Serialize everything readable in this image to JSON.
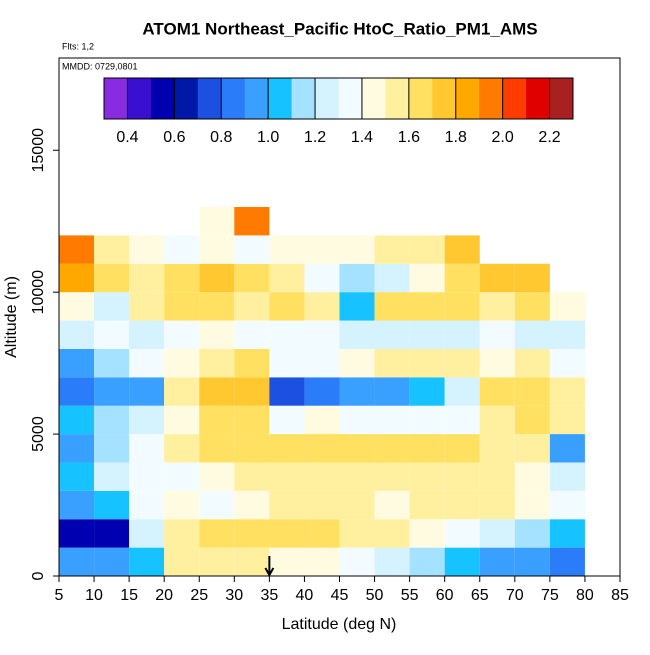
{
  "chart_data": {
    "type": "heatmap",
    "title": "ATOM1 Northeast_Pacific HtoC_Ratio_PM1_AMS",
    "flights_note": "Flts: 1,2",
    "dates_note": "MMDD: 0729,0801",
    "xlabel": "Latitude (deg N)",
    "ylabel": "Altitude (m)",
    "xlim": [
      5,
      85
    ],
    "ylim": [
      0,
      18250
    ],
    "xticks": [
      5,
      10,
      15,
      20,
      25,
      30,
      35,
      40,
      45,
      50,
      55,
      60,
      65,
      70,
      75,
      80,
      85
    ],
    "yticks": [
      0,
      5000,
      10000,
      15000
    ],
    "x_bins": [
      5,
      10,
      15,
      20,
      25,
      30,
      35,
      40,
      45,
      50,
      55,
      60,
      65,
      70,
      75,
      80
    ],
    "y_bins": [
      0,
      1000,
      2000,
      3000,
      4000,
      5000,
      6000,
      7000,
      8000,
      9000,
      10000,
      11000,
      12000,
      13000
    ],
    "values": [
      [
        0.9,
        0.9,
        1.0,
        1.5,
        1.55,
        1.5,
        1.45,
        1.45,
        1.3,
        1.2,
        1.1,
        1.0,
        0.95,
        0.9,
        0.85
      ],
      [
        0.55,
        0.55,
        1.2,
        1.5,
        1.6,
        1.6,
        1.65,
        1.65,
        1.55,
        1.5,
        1.4,
        1.3,
        1.2,
        1.1,
        1.0
      ],
      [
        0.9,
        1.0,
        1.3,
        1.4,
        1.3,
        1.45,
        1.5,
        1.5,
        1.5,
        1.45,
        1.5,
        1.55,
        1.5,
        1.45,
        1.3
      ],
      [
        1.0,
        1.2,
        1.35,
        1.3,
        1.4,
        1.5,
        1.55,
        1.55,
        1.5,
        1.5,
        1.55,
        1.55,
        1.5,
        1.4,
        1.2
      ],
      [
        0.9,
        1.1,
        1.3,
        1.5,
        1.6,
        1.65,
        1.65,
        1.65,
        1.6,
        1.6,
        1.6,
        1.6,
        1.5,
        1.5,
        0.9
      ],
      [
        1.0,
        1.1,
        1.2,
        1.4,
        1.6,
        1.6,
        1.3,
        1.4,
        1.3,
        1.3,
        1.3,
        1.3,
        1.5,
        1.6,
        1.5
      ],
      [
        0.85,
        0.9,
        0.95,
        1.5,
        1.75,
        1.7,
        0.7,
        0.8,
        0.9,
        0.95,
        1.05,
        1.2,
        1.65,
        1.6,
        1.5
      ],
      [
        0.9,
        1.1,
        1.3,
        1.4,
        1.5,
        1.6,
        1.3,
        1.3,
        1.4,
        1.5,
        1.55,
        1.5,
        1.4,
        1.5,
        1.3
      ],
      [
        1.2,
        1.3,
        1.2,
        1.3,
        1.4,
        1.3,
        1.35,
        1.3,
        1.25,
        1.25,
        1.2,
        1.2,
        1.3,
        1.2,
        1.2
      ],
      [
        1.4,
        1.2,
        1.5,
        1.6,
        1.6,
        1.5,
        1.6,
        1.5,
        1.0,
        1.6,
        1.6,
        1.6,
        1.5,
        1.6,
        1.4
      ],
      [
        1.85,
        1.6,
        1.5,
        1.6,
        1.7,
        1.6,
        1.5,
        1.3,
        1.1,
        1.2,
        1.4,
        1.6,
        1.7,
        1.7,
        null
      ],
      [
        1.95,
        1.5,
        1.4,
        1.3,
        1.4,
        1.35,
        1.4,
        1.45,
        1.45,
        1.5,
        1.55,
        1.7,
        null,
        null,
        null
      ],
      [
        null,
        null,
        null,
        null,
        1.4,
        1.9,
        null,
        null,
        null,
        null,
        null,
        null,
        null,
        null,
        null
      ]
    ],
    "marker_x": 35,
    "colorbar": {
      "lim": [
        0.3,
        2.3
      ],
      "ticks": [
        0.4,
        0.6,
        0.8,
        {
          "value": 1,
          "label": "1.0"
        },
        1.2,
        1.4,
        1.6,
        1.8,
        {
          "value": 2,
          "label": "2.0"
        },
        2.2
      ],
      "colors": [
        "#8a2be2",
        "#3a10d0",
        "#0000b0",
        "#0018a8",
        "#1c50e0",
        "#2a7cf8",
        "#3aa0ff",
        "#16c2ff",
        "#a4e2ff",
        "#d4f2ff",
        "#f2fbff",
        "#fffbe0",
        "#fff0a0",
        "#ffe060",
        "#ffc830",
        "#ffa800",
        "#ff7a00",
        "#ff3c00",
        "#e00000",
        "#a82020"
      ]
    }
  }
}
